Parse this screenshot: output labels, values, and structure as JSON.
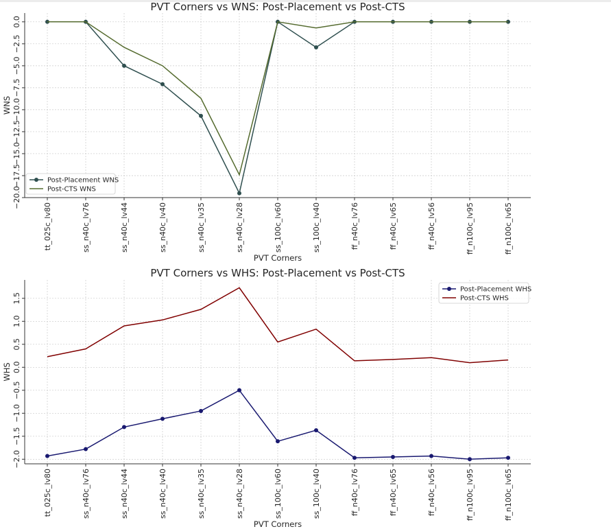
{
  "chart_data": [
    {
      "type": "line",
      "title": "PVT Corners vs WNS: Post-Placement vs Post-CTS",
      "xlabel": "PVT Corners",
      "ylabel": "WNS",
      "categories": [
        "tt_025c_lv80",
        "ss_n40c_lv76",
        "ss_n40c_lv44",
        "ss_n40c_lv40",
        "ss_n40c_lv35",
        "ss_n40c_lv28",
        "ss_100c_lv60",
        "ss_100c_lv40",
        "ff_n40c_lv76",
        "ff_n40c_lv65",
        "ff_n40c_lv56",
        "ff_n100c_lv95",
        "ff_n100c_lv65"
      ],
      "ylim": [
        -20,
        1
      ],
      "yticks": [
        -20.0,
        -17.5,
        -15.0,
        -12.5,
        -10.0,
        -7.5,
        -5.0,
        -2.5,
        0.0
      ],
      "ytick_labels": [
        "−20.0",
        "−17.5",
        "−15.0",
        "−12.5",
        "−10.0",
        "−7.5",
        "−5.0",
        "−2.5",
        "0.0"
      ],
      "grid": true,
      "legend_position": "lower-left",
      "series": [
        {
          "name": "Post-Placement WNS",
          "color": "#2f4f4f",
          "marker": true,
          "values": [
            0,
            0,
            -5.0,
            -7.1,
            -10.7,
            -19.5,
            0,
            -2.9,
            0,
            0,
            0,
            0,
            0
          ]
        },
        {
          "name": "Post-CTS WNS",
          "color": "#556b2f",
          "marker": false,
          "values": [
            0,
            0,
            -2.9,
            -5.0,
            -8.7,
            -17.4,
            0,
            -0.7,
            0,
            0,
            0,
            0,
            0
          ]
        }
      ]
    },
    {
      "type": "line",
      "title": "PVT Corners vs WHS: Post-Placement vs Post-CTS",
      "xlabel": "PVT Corners",
      "ylabel": "WHS",
      "categories": [
        "tt_025c_lv80",
        "ss_n40c_lv76",
        "ss_n40c_lv44",
        "ss_n40c_lv40",
        "ss_n40c_lv35",
        "ss_n40c_lv28",
        "ss_100c_lv60",
        "ss_100c_lv40",
        "ff_n40c_lv76",
        "ff_n40c_lv65",
        "ff_n40c_lv56",
        "ff_n100c_lv95",
        "ff_n100c_lv65"
      ],
      "ylim": [
        -2.1,
        1.9
      ],
      "yticks": [
        -2.0,
        -1.5,
        -1.0,
        -0.5,
        0.0,
        0.5,
        1.0,
        1.5
      ],
      "ytick_labels": [
        "−2.0",
        "−1.5",
        "−1.0",
        "−0.5",
        "0.0",
        "0.5",
        "1.0",
        "1.5"
      ],
      "grid": true,
      "legend_position": "upper-right",
      "series": [
        {
          "name": "Post-Placement WHS",
          "color": "#191970",
          "marker": true,
          "values": [
            -1.93,
            -1.78,
            -1.3,
            -1.12,
            -0.95,
            -0.5,
            -1.61,
            -1.37,
            -1.97,
            -1.95,
            -1.93,
            -2.0,
            -1.97
          ]
        },
        {
          "name": "Post-CTS WHS",
          "color": "#800000",
          "marker": false,
          "values": [
            0.23,
            0.4,
            0.9,
            1.03,
            1.26,
            1.73,
            0.55,
            0.83,
            0.14,
            0.17,
            0.21,
            0.1,
            0.16
          ]
        }
      ]
    }
  ]
}
